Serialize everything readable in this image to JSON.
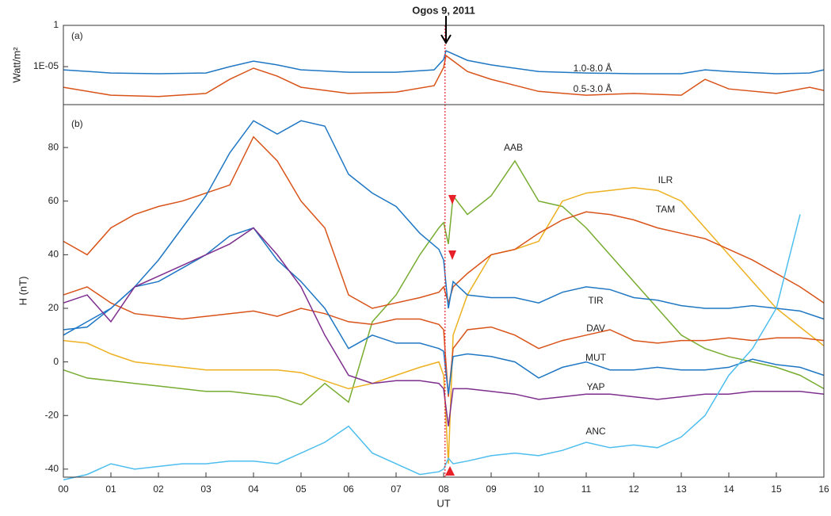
{
  "chart_data": [
    {
      "type": "line",
      "title": "Ogos 9, 2011",
      "panel_label": "(a)",
      "ylabel": "Watt/m²",
      "log_scale": true,
      "x": [
        0,
        1,
        2,
        3,
        3.5,
        4,
        4.5,
        5,
        6,
        7,
        7.8,
        8,
        8.05,
        8.5,
        9,
        10,
        11,
        12,
        13,
        13.5,
        14,
        15,
        15.7,
        16
      ],
      "xlim": [
        0,
        16
      ],
      "ylim": [
        2.5e-10,
        1
      ],
      "yticks": [
        1,
        {
          "value": 1e-05,
          "label": "1E-05"
        }
      ],
      "series": [
        {
          "name": "1.0-8.0 Å",
          "color": "#1f77c4",
          "values": [
            4.1e-06,
            1.7e-06,
            1.4e-06,
            1.7e-06,
            1e-05,
            4.7e-05,
            1.6e-05,
            4.1e-06,
            2.1e-06,
            2.1e-06,
            4.1e-06,
            7.4e-05,
            0.00083,
            5.8e-05,
            1.6e-05,
            2.6e-06,
            1.7e-06,
            1.4e-06,
            1.4e-06,
            4.1e-06,
            2.6e-06,
            1.4e-06,
            1.7e-06,
            4.1e-06
          ]
        },
        {
          "name": "0.5-3.0 Å",
          "color": "#d95319",
          "values": [
            3.2e-08,
            3.5e-09,
            2.4e-09,
            5.6e-09,
            2.9e-07,
            6.5e-06,
            7e-07,
            3.2e-08,
            5.6e-09,
            8.3e-09,
            4.9e-08,
            8e-06,
            0.00022,
            2.6e-06,
            2.9e-07,
            1e-08,
            3.5e-09,
            5.6e-09,
            3.5e-09,
            2.9e-07,
            2e-08,
            5.6e-09,
            3.2e-08,
            1.3e-08
          ]
        }
      ],
      "marker_x": 8.03
    },
    {
      "type": "line",
      "panel_label": "(b)",
      "ylabel": "H (nT)",
      "xlabel": "UT",
      "x": [
        0,
        0.5,
        1,
        1.5,
        2,
        2.5,
        3,
        3.5,
        4,
        4.5,
        5,
        5.5,
        6,
        6.5,
        7,
        7.5,
        7.9,
        8.0,
        8.1,
        8.2,
        8.5,
        9,
        9.5,
        10,
        10.5,
        11,
        11.5,
        12,
        12.5,
        13,
        13.5,
        14,
        14.5,
        15,
        15.5,
        16
      ],
      "xlim": [
        0,
        16
      ],
      "ylim": [
        -43,
        96
      ],
      "yticks": [
        -40,
        -20,
        0,
        20,
        40,
        60,
        80
      ],
      "xticks": [
        {
          "value": 0,
          "label": "00"
        },
        {
          "value": 1,
          "label": "01"
        },
        {
          "value": 2,
          "label": "02"
        },
        {
          "value": 3,
          "label": "03"
        },
        {
          "value": 4,
          "label": "04"
        },
        {
          "value": 5,
          "label": "05"
        },
        {
          "value": 6,
          "label": "06"
        },
        {
          "value": 7,
          "label": "07"
        },
        {
          "value": 8,
          "label": "08"
        },
        {
          "value": 9,
          "label": "09"
        },
        10,
        11,
        12,
        13,
        14,
        15,
        16
      ],
      "series": [
        {
          "name": "AAB",
          "color": "#77ac30",
          "values": [
            -3,
            -6,
            -7,
            -8,
            -9,
            -10,
            -11,
            -11,
            -12,
            -13,
            -16,
            -8,
            -15,
            15,
            25,
            40,
            50,
            52,
            44,
            62,
            55,
            62,
            75,
            60,
            58,
            50,
            40,
            30,
            20,
            10,
            5,
            2,
            0,
            -2,
            -5,
            -10
          ]
        },
        {
          "name": "ILR",
          "color": "#edb120",
          "values": [
            8,
            7,
            3,
            0,
            -1,
            -2,
            -3,
            -3,
            -3,
            -3,
            -4,
            -7,
            -10,
            -8,
            -5,
            -2,
            0,
            -5,
            -38,
            10,
            25,
            40,
            42,
            45,
            60,
            63,
            64,
            65,
            64,
            60,
            50,
            40,
            30,
            20,
            13,
            6
          ]
        },
        {
          "name": "TAM",
          "color": "#d95319",
          "values": [
            45,
            40,
            50,
            55,
            58,
            60,
            63,
            66,
            84,
            75,
            60,
            50,
            25,
            20,
            22,
            24,
            26,
            28,
            22,
            28,
            33,
            40,
            42,
            48,
            53,
            56,
            55,
            53,
            50,
            48,
            46,
            42,
            38,
            33,
            28,
            22
          ]
        },
        {
          "name": "TIR",
          "color": "#1f77c4",
          "values": [
            12,
            13,
            20,
            28,
            38,
            50,
            62,
            78,
            90,
            85,
            90,
            88,
            70,
            63,
            58,
            48,
            42,
            38,
            20,
            30,
            25,
            24,
            24,
            22,
            26,
            28,
            27,
            24,
            23,
            21,
            20,
            20,
            21,
            20,
            19,
            16
          ]
        },
        {
          "name": "DAV",
          "color": "#d95319",
          "values": [
            25,
            28,
            22,
            18,
            17,
            16,
            17,
            18,
            19,
            17,
            20,
            18,
            15,
            14,
            16,
            16,
            14,
            12,
            -13,
            5,
            12,
            13,
            10,
            5,
            8,
            10,
            12,
            8,
            7,
            8,
            8,
            9,
            8,
            9,
            9,
            8
          ]
        },
        {
          "name": "MUT",
          "color": "#1f77c4",
          "values": [
            10,
            15,
            20,
            28,
            30,
            35,
            40,
            47,
            50,
            38,
            30,
            20,
            5,
            10,
            7,
            7,
            5,
            4,
            -12,
            2,
            3,
            2,
            0,
            -6,
            -2,
            0,
            -3,
            -3,
            -2,
            -3,
            -3,
            -2,
            1,
            -1,
            -2,
            -5
          ]
        },
        {
          "name": "YAP",
          "color": "#7e2f8e",
          "values": [
            22,
            25,
            15,
            28,
            32,
            36,
            40,
            44,
            50,
            40,
            28,
            10,
            -5,
            -8,
            -7,
            -7,
            -8,
            -10,
            -24,
            -10,
            -10,
            -11,
            -12,
            -14,
            -13,
            -12,
            -12,
            -13,
            -14,
            -13,
            -12,
            -12,
            -11,
            -11,
            -11,
            -12
          ]
        },
        {
          "name": "ANC",
          "color": "#4dbeee",
          "values": [
            -44,
            -42,
            -38,
            -40,
            -39,
            -38,
            -38,
            -37,
            -37,
            -38,
            -34,
            -30,
            -24,
            -34,
            -38,
            -42,
            -41,
            -40,
            -36,
            -38,
            -37,
            -35,
            -34,
            -35,
            -33,
            -30,
            -32,
            -31,
            -32,
            -28,
            -20,
            -5,
            5,
            20,
            55,
            null
          ]
        }
      ],
      "marker_x": 8.03
    }
  ]
}
